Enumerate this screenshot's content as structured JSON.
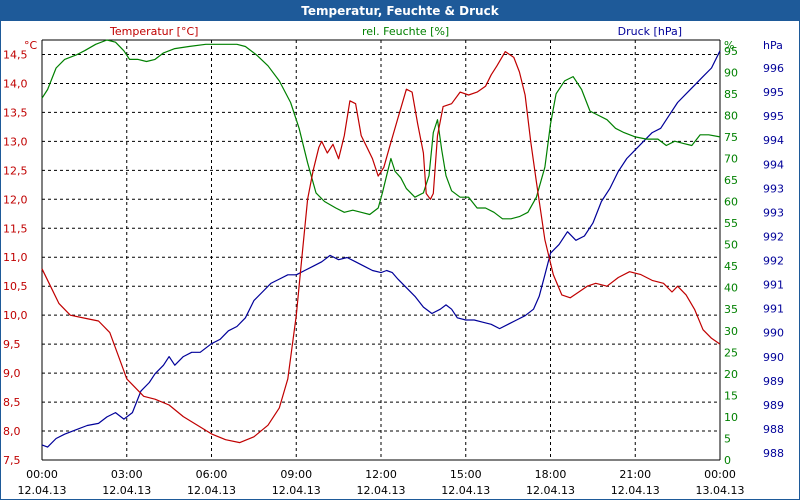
{
  "chart_data": {
    "type": "line",
    "title": "Temperatur, Feuchte & Druck",
    "x_ticks": [
      {
        "time": "00:00",
        "date": "12.04.13"
      },
      {
        "time": "03:00",
        "date": "12.04.13"
      },
      {
        "time": "06:00",
        "date": "12.04.13"
      },
      {
        "time": "09:00",
        "date": "12.04.13"
      },
      {
        "time": "12:00",
        "date": "12.04.13"
      },
      {
        "time": "15:00",
        "date": "12.04.13"
      },
      {
        "time": "18:00",
        "date": "12.04.13"
      },
      {
        "time": "21:00",
        "date": "12.04.13"
      },
      {
        "time": "00:00",
        "date": "13.04.13"
      }
    ],
    "xlim_hours": [
      0,
      24
    ],
    "grid": true,
    "axes": {
      "temperature": {
        "label": "Temperatur [°C]",
        "unit": "°C",
        "ylim": [
          7.5,
          14.75
        ],
        "ticks": [
          "7,5",
          "8,0",
          "8,5",
          "9,0",
          "9,5",
          "10,0",
          "10,5",
          "11,0",
          "11,5",
          "12,0",
          "12,5",
          "13,0",
          "13,5",
          "14,0",
          "14,5"
        ]
      },
      "humidity": {
        "label": "rel. Feuchte [%]",
        "unit": "%",
        "ylim": [
          0,
          97.5
        ],
        "ticks": [
          "0",
          "5",
          "10",
          "15",
          "20",
          "25",
          "30",
          "35",
          "40",
          "45",
          "50",
          "55",
          "60",
          "65",
          "70",
          "75",
          "80",
          "85",
          "90",
          "95"
        ]
      },
      "pressure": {
        "label": "Druck [hPa]",
        "unit": "hPa",
        "ticks": [
          "988",
          "988",
          "989",
          "989",
          "990",
          "990",
          "991",
          "991",
          "992",
          "992",
          "993",
          "993",
          "994",
          "994",
          "995",
          "995",
          "996"
        ]
      }
    },
    "series": [
      {
        "name": "Temperatur [°C]",
        "axis": "temperature",
        "color": "#c00000",
        "points": [
          [
            0,
            10.8
          ],
          [
            0.3,
            10.5
          ],
          [
            0.6,
            10.2
          ],
          [
            1,
            10.0
          ],
          [
            1.5,
            9.95
          ],
          [
            2,
            9.9
          ],
          [
            2.4,
            9.7
          ],
          [
            2.7,
            9.3
          ],
          [
            3,
            8.9
          ],
          [
            3.3,
            8.75
          ],
          [
            3.6,
            8.6
          ],
          [
            4,
            8.55
          ],
          [
            4.5,
            8.45
          ],
          [
            5,
            8.25
          ],
          [
            5.5,
            8.1
          ],
          [
            6,
            7.95
          ],
          [
            6.5,
            7.85
          ],
          [
            7,
            7.8
          ],
          [
            7.5,
            7.9
          ],
          [
            8,
            8.1
          ],
          [
            8.4,
            8.4
          ],
          [
            8.7,
            8.9
          ],
          [
            9,
            10.0
          ],
          [
            9.2,
            11.0
          ],
          [
            9.4,
            12.0
          ],
          [
            9.6,
            12.5
          ],
          [
            9.8,
            12.9
          ],
          [
            9.9,
            13.0
          ],
          [
            10.1,
            12.8
          ],
          [
            10.3,
            12.95
          ],
          [
            10.5,
            12.7
          ],
          [
            10.7,
            13.1
          ],
          [
            10.9,
            13.7
          ],
          [
            11.1,
            13.65
          ],
          [
            11.3,
            13.1
          ],
          [
            11.5,
            12.9
          ],
          [
            11.7,
            12.7
          ],
          [
            11.9,
            12.4
          ],
          [
            12.1,
            12.55
          ],
          [
            12.3,
            12.9
          ],
          [
            12.6,
            13.4
          ],
          [
            12.9,
            13.9
          ],
          [
            13.1,
            13.85
          ],
          [
            13.3,
            13.3
          ],
          [
            13.5,
            12.8
          ],
          [
            13.6,
            12.1
          ],
          [
            13.75,
            12.0
          ],
          [
            13.85,
            12.1
          ],
          [
            14,
            13.1
          ],
          [
            14.2,
            13.6
          ],
          [
            14.5,
            13.65
          ],
          [
            14.8,
            13.85
          ],
          [
            15.1,
            13.8
          ],
          [
            15.4,
            13.85
          ],
          [
            15.7,
            13.95
          ],
          [
            15.9,
            14.15
          ],
          [
            16.1,
            14.3
          ],
          [
            16.4,
            14.55
          ],
          [
            16.7,
            14.45
          ],
          [
            16.9,
            14.2
          ],
          [
            17.1,
            13.8
          ],
          [
            17.3,
            13.0
          ],
          [
            17.5,
            12.3
          ],
          [
            17.8,
            11.3
          ],
          [
            18.1,
            10.7
          ],
          [
            18.4,
            10.35
          ],
          [
            18.7,
            10.3
          ],
          [
            19,
            10.4
          ],
          [
            19.3,
            10.5
          ],
          [
            19.6,
            10.55
          ],
          [
            20,
            10.5
          ],
          [
            20.4,
            10.65
          ],
          [
            20.8,
            10.75
          ],
          [
            21.2,
            10.7
          ],
          [
            21.6,
            10.6
          ],
          [
            22,
            10.55
          ],
          [
            22.3,
            10.4
          ],
          [
            22.5,
            10.5
          ],
          [
            22.8,
            10.35
          ],
          [
            23.1,
            10.1
          ],
          [
            23.4,
            9.75
          ],
          [
            23.7,
            9.6
          ],
          [
            24,
            9.5
          ]
        ]
      },
      {
        "name": "rel. Feuchte [%]",
        "axis": "humidity",
        "color": "#008000",
        "points": [
          [
            0,
            84
          ],
          [
            0.2,
            86
          ],
          [
            0.5,
            91
          ],
          [
            0.8,
            93
          ],
          [
            1.2,
            94
          ],
          [
            1.5,
            95
          ],
          [
            1.9,
            96.5
          ],
          [
            2.3,
            97.5
          ],
          [
            2.6,
            97
          ],
          [
            2.9,
            95
          ],
          [
            3.1,
            93
          ],
          [
            3.4,
            93
          ],
          [
            3.7,
            92.5
          ],
          [
            4,
            93
          ],
          [
            4.3,
            94.5
          ],
          [
            4.7,
            95.5
          ],
          [
            5.2,
            96
          ],
          [
            5.8,
            96.5
          ],
          [
            6.5,
            96.5
          ],
          [
            6.9,
            96.5
          ],
          [
            7.2,
            96
          ],
          [
            7.6,
            94
          ],
          [
            8,
            91.5
          ],
          [
            8.4,
            88
          ],
          [
            8.8,
            83
          ],
          [
            9.1,
            77
          ],
          [
            9.4,
            69
          ],
          [
            9.7,
            62
          ],
          [
            10,
            60
          ],
          [
            10.4,
            58.5
          ],
          [
            10.7,
            57.5
          ],
          [
            11,
            58
          ],
          [
            11.3,
            57.5
          ],
          [
            11.6,
            57
          ],
          [
            11.9,
            58.5
          ],
          [
            12.05,
            62
          ],
          [
            12.2,
            66
          ],
          [
            12.35,
            70
          ],
          [
            12.5,
            67
          ],
          [
            12.7,
            65.5
          ],
          [
            12.9,
            63
          ],
          [
            13.2,
            61
          ],
          [
            13.5,
            62
          ],
          [
            13.7,
            66
          ],
          [
            13.85,
            76
          ],
          [
            14,
            79
          ],
          [
            14.15,
            72
          ],
          [
            14.3,
            66
          ],
          [
            14.5,
            62.5
          ],
          [
            14.8,
            61
          ],
          [
            15.1,
            61
          ],
          [
            15.4,
            58.5
          ],
          [
            15.7,
            58.5
          ],
          [
            16,
            57.5
          ],
          [
            16.3,
            56
          ],
          [
            16.6,
            56
          ],
          [
            16.9,
            56.5
          ],
          [
            17.2,
            57.5
          ],
          [
            17.5,
            61
          ],
          [
            17.8,
            68
          ],
          [
            18,
            78
          ],
          [
            18.2,
            85
          ],
          [
            18.5,
            88
          ],
          [
            18.8,
            89
          ],
          [
            19.1,
            86
          ],
          [
            19.4,
            81
          ],
          [
            19.7,
            80
          ],
          [
            20,
            79
          ],
          [
            20.3,
            77
          ],
          [
            20.6,
            76
          ],
          [
            21,
            75
          ],
          [
            21.4,
            74.5
          ],
          [
            21.8,
            74.5
          ],
          [
            22.1,
            73
          ],
          [
            22.4,
            74
          ],
          [
            22.7,
            73.5
          ],
          [
            23,
            73
          ],
          [
            23.3,
            75.5
          ],
          [
            23.6,
            75.5
          ],
          [
            24,
            75
          ]
        ]
      },
      {
        "name": "Druck [hPa]",
        "axis": "pressure",
        "points": [
          [
            0,
            3.5
          ],
          [
            0.2,
            3
          ],
          [
            0.5,
            5
          ],
          [
            0.8,
            6
          ],
          [
            1.2,
            7
          ],
          [
            1.6,
            8
          ],
          [
            2,
            8.5
          ],
          [
            2.3,
            10
          ],
          [
            2.6,
            11
          ],
          [
            2.9,
            9.5
          ],
          [
            3.2,
            11
          ],
          [
            3.5,
            16
          ],
          [
            3.8,
            18
          ],
          [
            4,
            20
          ],
          [
            4.3,
            22
          ],
          [
            4.5,
            24
          ],
          [
            4.7,
            22
          ],
          [
            5,
            24
          ],
          [
            5.3,
            25
          ],
          [
            5.6,
            25
          ],
          [
            6,
            27
          ],
          [
            6.3,
            28
          ],
          [
            6.6,
            30
          ],
          [
            6.9,
            31
          ],
          [
            7.2,
            33
          ],
          [
            7.5,
            37
          ],
          [
            7.8,
            39
          ],
          [
            8.1,
            41
          ],
          [
            8.4,
            42
          ],
          [
            8.7,
            43
          ],
          [
            9,
            43
          ],
          [
            9.3,
            44
          ],
          [
            9.6,
            45
          ],
          [
            9.9,
            46
          ],
          [
            10.2,
            47.5
          ],
          [
            10.5,
            46.5
          ],
          [
            10.8,
            47
          ],
          [
            11.1,
            46
          ],
          [
            11.4,
            45
          ],
          [
            11.7,
            44
          ],
          [
            12,
            43.5
          ],
          [
            12.2,
            44
          ],
          [
            12.4,
            43.5
          ],
          [
            12.6,
            42
          ],
          [
            12.9,
            40
          ],
          [
            13.2,
            38
          ],
          [
            13.5,
            35.5
          ],
          [
            13.8,
            34
          ],
          [
            14.1,
            35
          ],
          [
            14.3,
            36
          ],
          [
            14.5,
            35
          ],
          [
            14.7,
            33
          ],
          [
            15,
            32.5
          ],
          [
            15.3,
            32.5
          ],
          [
            15.6,
            32
          ],
          [
            15.9,
            31.5
          ],
          [
            16.2,
            30.5
          ],
          [
            16.5,
            31.5
          ],
          [
            16.8,
            32.5
          ],
          [
            17.1,
            33.5
          ],
          [
            17.4,
            35
          ],
          [
            17.6,
            38
          ],
          [
            17.8,
            43
          ],
          [
            18,
            48
          ],
          [
            18.3,
            50
          ],
          [
            18.6,
            53
          ],
          [
            18.9,
            51
          ],
          [
            19.2,
            52
          ],
          [
            19.5,
            55
          ],
          [
            19.8,
            60
          ],
          [
            20.1,
            63
          ],
          [
            20.4,
            67
          ],
          [
            20.7,
            70
          ],
          [
            21,
            72
          ],
          [
            21.3,
            74
          ],
          [
            21.6,
            76
          ],
          [
            21.9,
            77
          ],
          [
            22.2,
            80
          ],
          [
            22.5,
            83
          ],
          [
            22.8,
            85
          ],
          [
            23.1,
            87
          ],
          [
            23.4,
            89
          ],
          [
            23.7,
            91
          ],
          [
            24,
            95
          ]
        ]
      }
    ]
  },
  "colors": {
    "title_bar": "#1e5a99",
    "temperature": "#c00000",
    "humidity": "#008000",
    "pressure": "#000099",
    "grid": "#000000"
  }
}
